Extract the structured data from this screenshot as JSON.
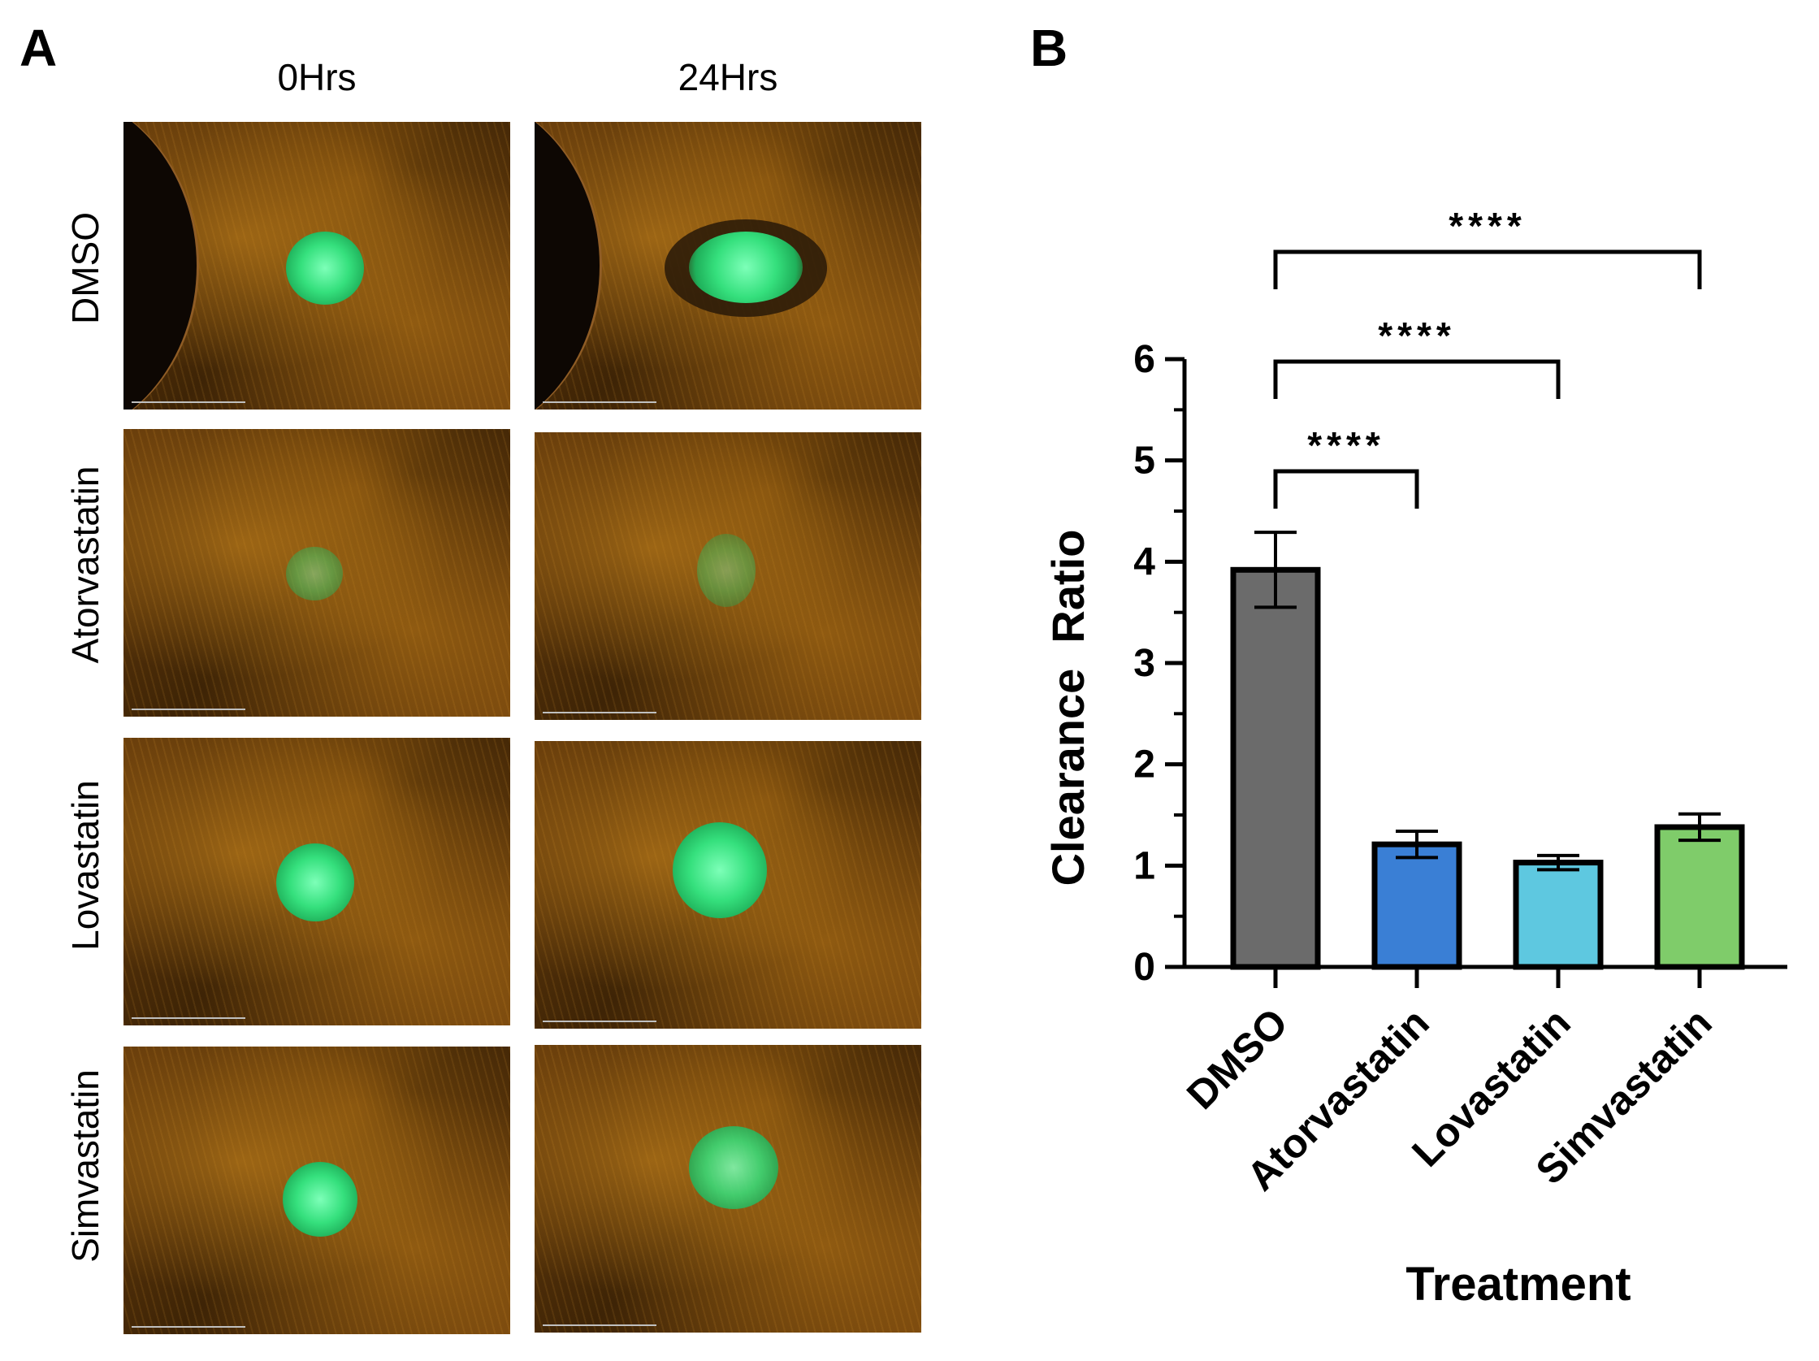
{
  "panel_a": {
    "letter": "A",
    "columns": [
      "0Hrs",
      "24Hrs"
    ],
    "rows": [
      "DMSO",
      "Atorvastatin",
      "Lovastatin",
      "Simvastatin"
    ]
  },
  "panel_b": {
    "letter": "B"
  },
  "colors": {
    "DMSO": "#6b6b6b",
    "Atorvastatin": "#3a7fd5",
    "Lovastatin": "#5ec8e0",
    "Simvastatin": "#7fcc6a",
    "spheroid": "#35e07d",
    "matrix": "#6b3f0c"
  },
  "chart_data": {
    "type": "bar",
    "categories": [
      "DMSO",
      "Atorvastatin",
      "Lovastatin",
      "Simvastatin"
    ],
    "values": [
      3.92,
      1.21,
      1.03,
      1.38
    ],
    "errors": [
      0.37,
      0.13,
      0.07,
      0.13
    ],
    "xlabel": "Treatment",
    "ylabel": "Clearance  Ratio",
    "ylim": [
      0,
      6
    ],
    "yticks": [
      0,
      1,
      2,
      3,
      4,
      5,
      6
    ],
    "grid": false,
    "significance": [
      {
        "from": "DMSO",
        "to": "Atorvastatin",
        "label": "****"
      },
      {
        "from": "DMSO",
        "to": "Lovastatin",
        "label": "****"
      },
      {
        "from": "DMSO",
        "to": "Simvastatin",
        "label": "****"
      }
    ]
  }
}
